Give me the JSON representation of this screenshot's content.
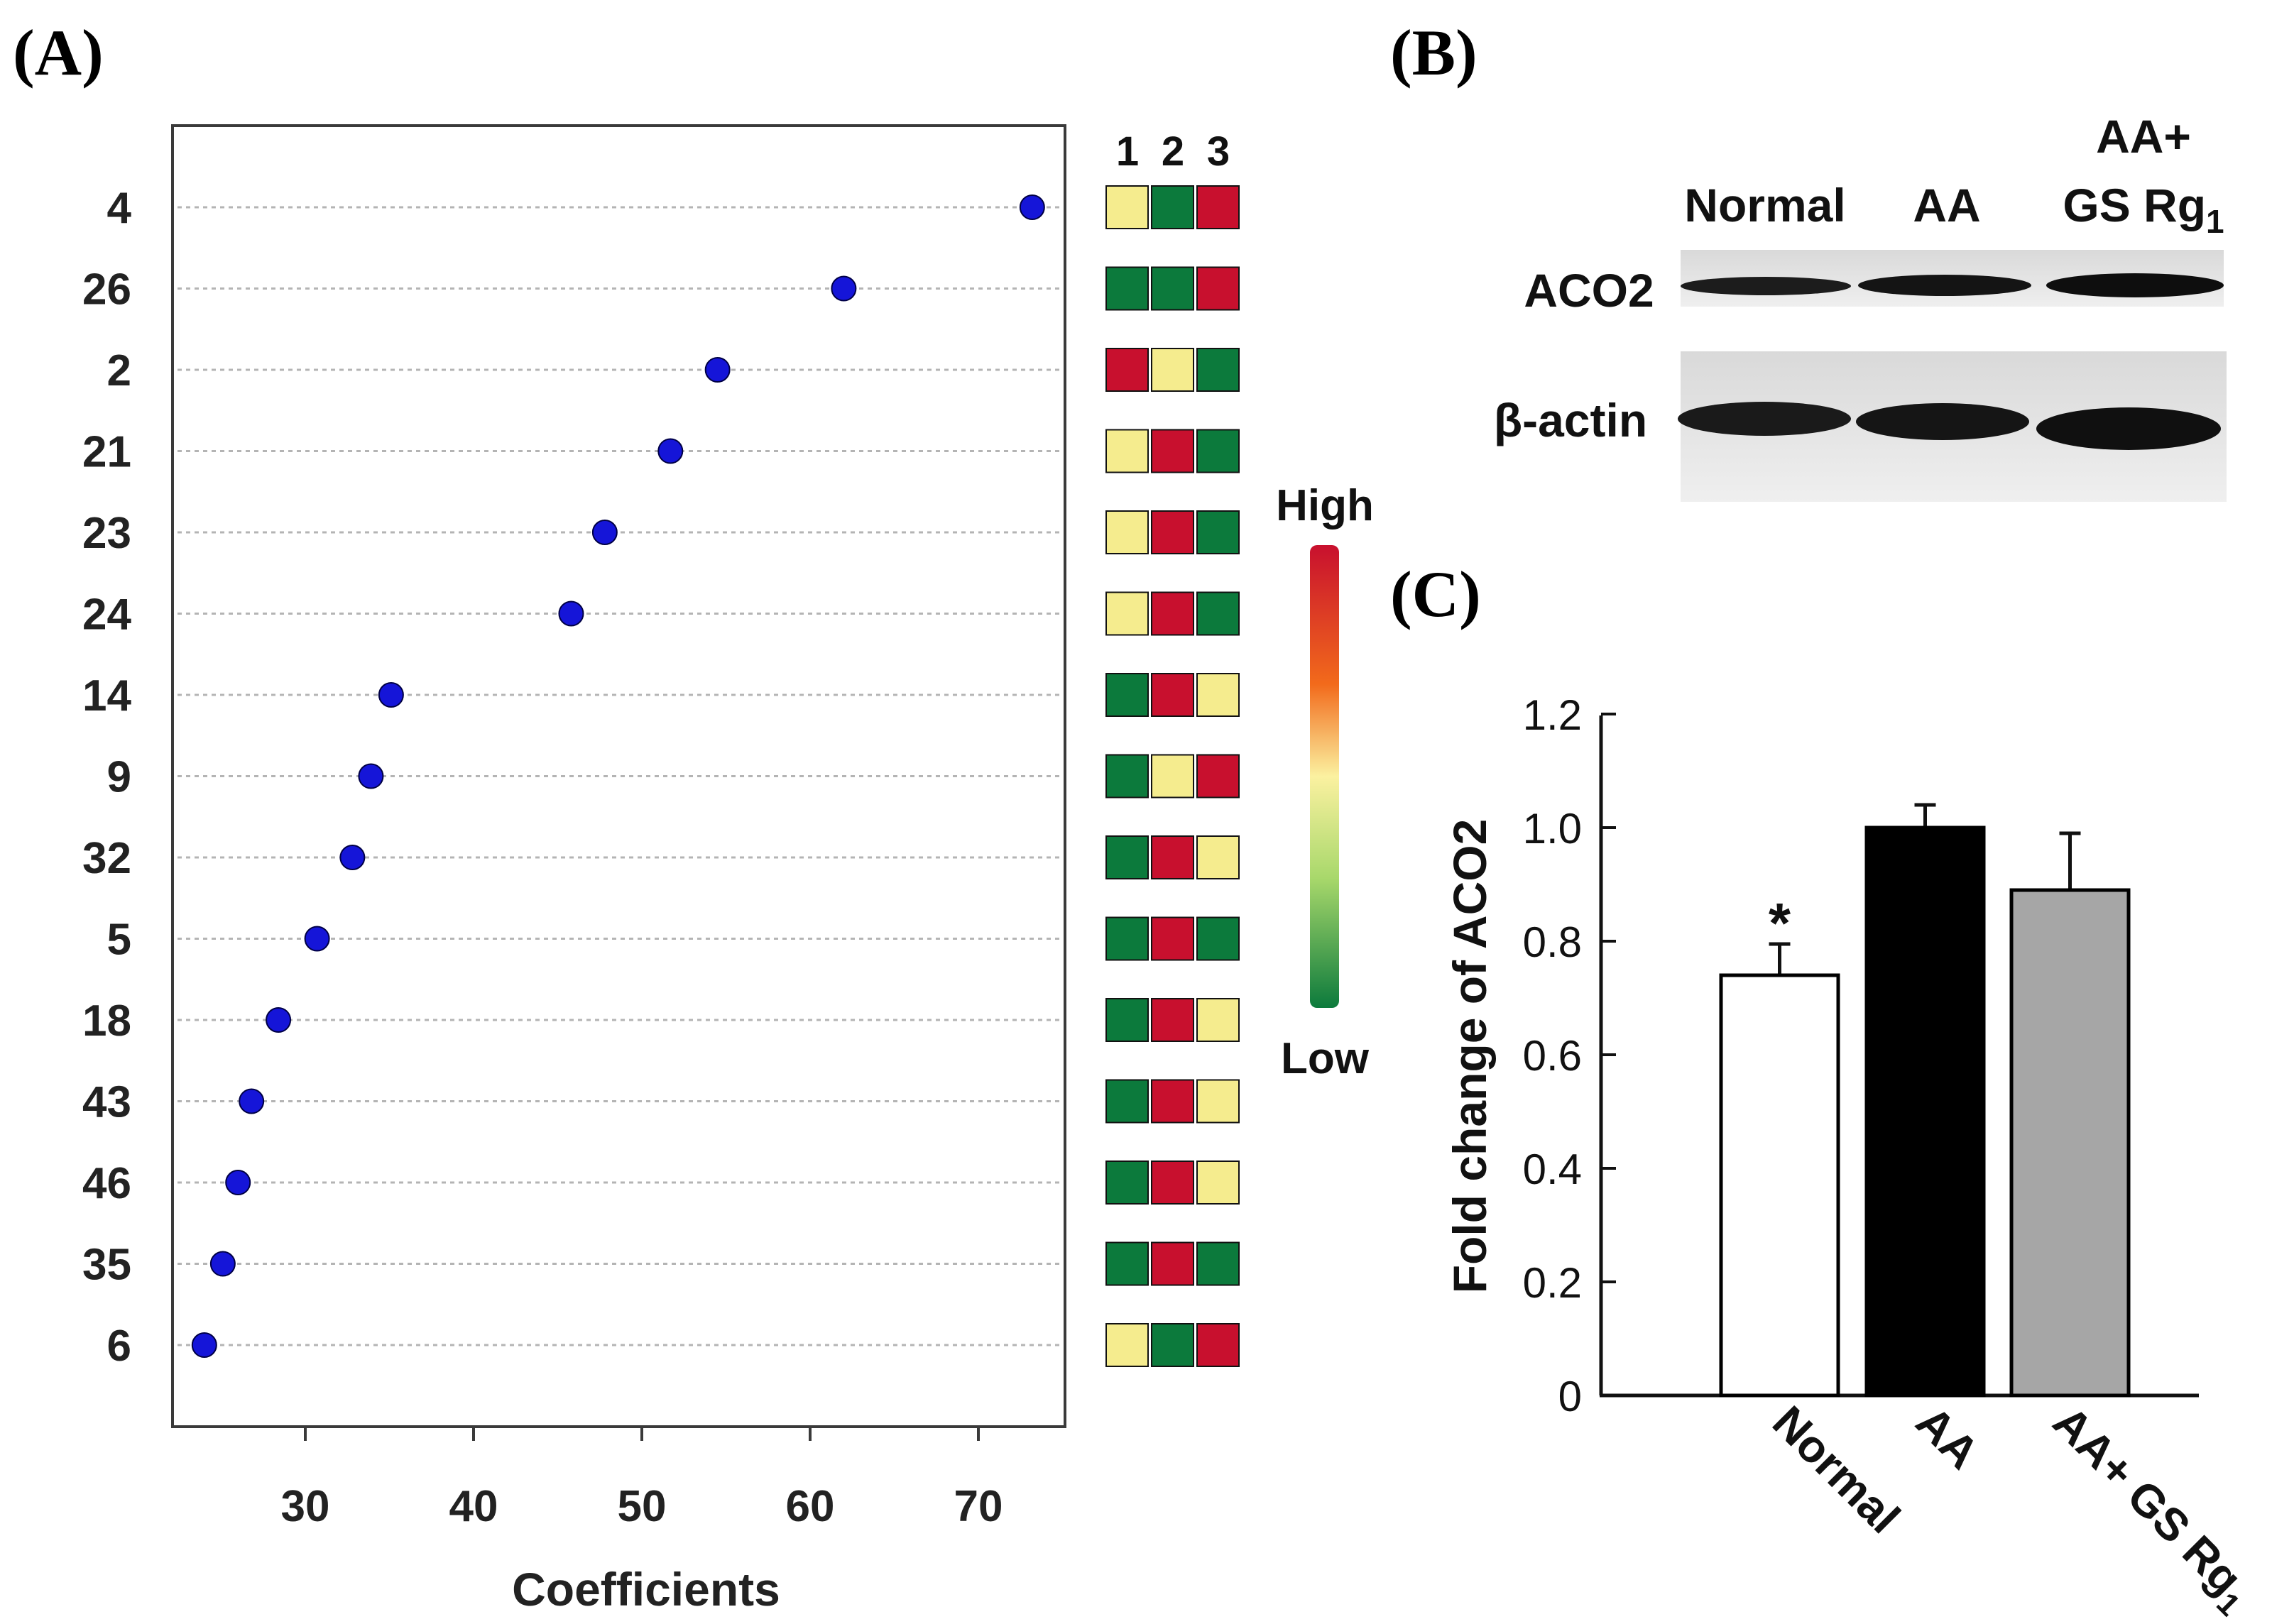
{
  "panel_a": {
    "label": "(A)",
    "heat_columns": [
      "1",
      "2",
      "3"
    ],
    "legend": {
      "high": "High",
      "low": "Low"
    },
    "colors": {
      "dot": "#1515d8",
      "red": "#c8102e",
      "green": "#0c7a3c",
      "yellow": "#f5ec8e"
    }
  },
  "panel_b": {
    "label": "(B)",
    "lanes": [
      "Normal",
      "AA",
      "AA+",
      "GS Rg",
      "1"
    ],
    "rows": [
      "ACO2",
      "β-actin"
    ]
  },
  "panel_c": {
    "label": "(C)"
  },
  "chart_data": [
    {
      "type": "scatter",
      "title": "",
      "xlabel": "Coefficients",
      "ylabel": "",
      "xlim": [
        22,
        75
      ],
      "xticks": [
        "30",
        "40",
        "50",
        "60",
        "70"
      ],
      "categories": [
        "4",
        "26",
        "2",
        "21",
        "23",
        "24",
        "14",
        "9",
        "32",
        "5",
        "18",
        "43",
        "46",
        "35",
        "6"
      ],
      "values": [
        73.2,
        62.0,
        54.5,
        51.7,
        47.8,
        45.8,
        35.1,
        33.9,
        32.8,
        30.7,
        28.4,
        26.8,
        26.0,
        25.1,
        24.0
      ],
      "heatmap": [
        [
          "yellow",
          "green",
          "red"
        ],
        [
          "green",
          "green",
          "red"
        ],
        [
          "red",
          "yellow",
          "green"
        ],
        [
          "yellow",
          "red",
          "green"
        ],
        [
          "yellow",
          "red",
          "green"
        ],
        [
          "yellow",
          "red",
          "green"
        ],
        [
          "green",
          "red",
          "yellow"
        ],
        [
          "green",
          "yellow",
          "red"
        ],
        [
          "green",
          "red",
          "yellow"
        ],
        [
          "green",
          "red",
          "green"
        ],
        [
          "green",
          "red",
          "yellow"
        ],
        [
          "green",
          "red",
          "yellow"
        ],
        [
          "green",
          "red",
          "yellow"
        ],
        [
          "green",
          "red",
          "green"
        ],
        [
          "yellow",
          "green",
          "red"
        ]
      ]
    },
    {
      "type": "bar",
      "title": "",
      "xlabel": "",
      "ylabel": "Fold change of ACO2",
      "ylim": [
        0,
        1.2
      ],
      "yticks": [
        "0",
        "0.2",
        "0.4",
        "0.6",
        "0.8",
        "1.0",
        "1.2"
      ],
      "categories": [
        "Normal",
        "AA",
        "AA+ GS Rg"
      ],
      "subscript": "1",
      "values": [
        0.74,
        1.0,
        0.89
      ],
      "errors": [
        0.055,
        0.04,
        0.1
      ],
      "fills": [
        "#ffffff",
        "#000000",
        "#a6a6a6"
      ],
      "significance": [
        "*",
        "",
        ""
      ]
    }
  ]
}
